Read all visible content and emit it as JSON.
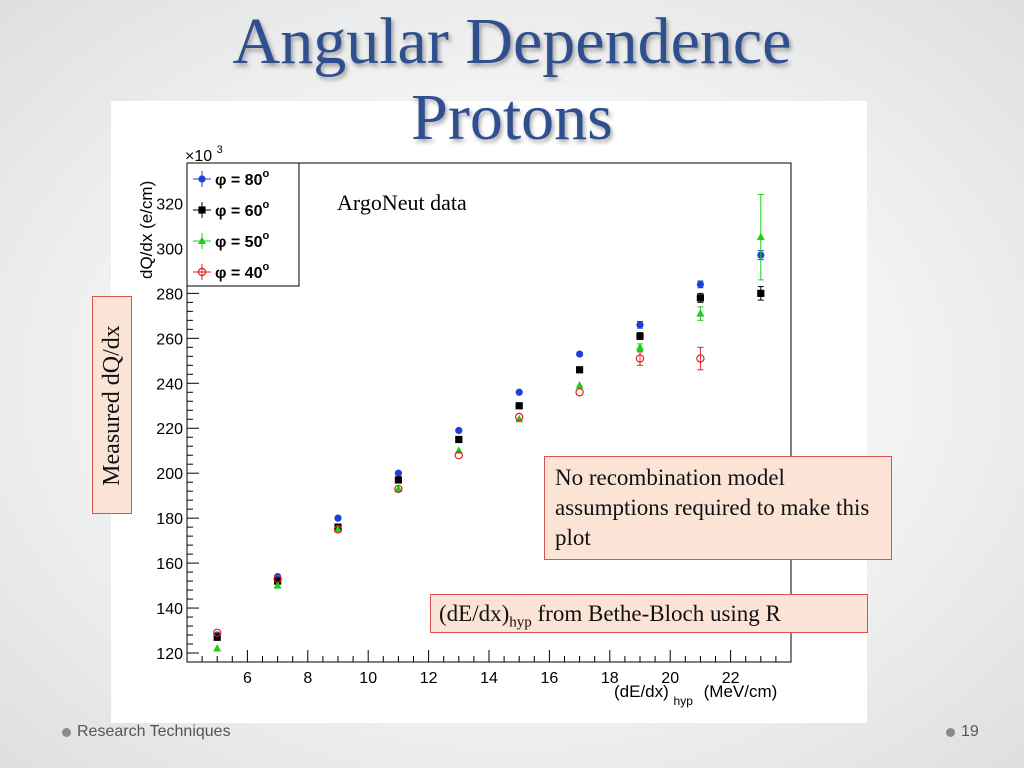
{
  "slide": {
    "title_line1": "Angular Dependence",
    "title_line2": "Protons",
    "footer_left": "Research Techniques",
    "page_number": "19"
  },
  "annotations": {
    "data_label": "ArgoNeut data",
    "ylabel_box": "Measured dQ/dx",
    "note_box": "No recombination model assumptions required to make this plot",
    "formula_main": "(dE/dx)",
    "formula_sub": "hyp",
    "formula_rest": " from Bethe-Bloch using R"
  },
  "chart_data": {
    "type": "scatter",
    "ylabel": "dQ/dx (e/cm)",
    "ylabel_multiplier": "×10",
    "ylabel_multiplier_exp": "3",
    "xlabel": "(dE/dx)",
    "xlabel_sub": "hyp",
    "xlabel_unit": "(MeV/cm)",
    "xlim": [
      4,
      24
    ],
    "ylim": [
      116,
      338
    ],
    "xticks": [
      6,
      8,
      10,
      12,
      14,
      16,
      18,
      20,
      22
    ],
    "yticks": [
      120,
      140,
      160,
      180,
      200,
      220,
      240,
      260,
      280,
      300,
      320
    ],
    "legend_position": "top-left",
    "series": [
      {
        "name": "φ = 80°",
        "legend_label": "φ = 80",
        "color": "#1f3fd6",
        "marker": "circle-filled",
        "x": [
          5,
          7,
          9,
          11,
          13,
          15,
          17,
          19,
          21,
          23
        ],
        "y": [
          128,
          154,
          180,
          200,
          219,
          236,
          253,
          266,
          284,
          297
        ],
        "err": [
          0,
          0,
          0,
          0,
          0,
          0,
          0,
          1.5,
          1.5,
          2
        ]
      },
      {
        "name": "φ = 60°",
        "legend_label": "φ = 60",
        "color": "#000000",
        "marker": "square-filled",
        "x": [
          5,
          7,
          9,
          11,
          13,
          15,
          17,
          19,
          21,
          23
        ],
        "y": [
          127,
          152,
          176,
          197,
          215,
          230,
          246,
          261,
          278,
          280
        ],
        "err": [
          0,
          0,
          0,
          0,
          0,
          0,
          0,
          1.5,
          2,
          3
        ]
      },
      {
        "name": "φ = 50°",
        "legend_label": "φ = 50",
        "color": "#1ad11a",
        "marker": "triangle-filled",
        "x": [
          5,
          7,
          9,
          11,
          13,
          15,
          17,
          19,
          21,
          23
        ],
        "y": [
          122,
          150,
          175,
          193,
          210,
          224,
          239,
          256,
          271,
          305
        ],
        "err": [
          0,
          0,
          0,
          0,
          0,
          0,
          0,
          1.5,
          3,
          19
        ]
      },
      {
        "name": "φ = 40°",
        "legend_label": "φ = 40",
        "color": "#e02020",
        "marker": "circle-open",
        "x": [
          5,
          7,
          9,
          11,
          13,
          15,
          17,
          19,
          21
        ],
        "y": [
          129,
          153,
          175,
          193,
          208,
          225,
          236,
          251,
          251
        ],
        "err": [
          0,
          0,
          0,
          0,
          0,
          0,
          0,
          3,
          5
        ]
      }
    ]
  }
}
